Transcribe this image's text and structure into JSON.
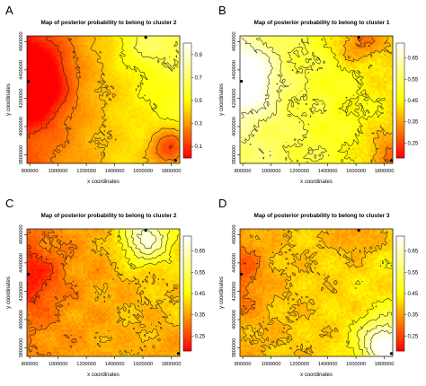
{
  "chart_data": [
    {
      "type": "heatmap",
      "panel_label": "A",
      "title": "Map of posterior probability to belong to cluster  2",
      "xlabel": "x coordinates",
      "ylabel": "y coordinates",
      "x_ticks": [
        "800000",
        "1000000",
        "1200000",
        "1400000",
        "1600000",
        "1800000"
      ],
      "y_ticks": [
        "3800000",
        "4000000",
        "4200000",
        "4400000",
        "4600000"
      ],
      "xlim": [
        780000,
        1860000
      ],
      "ylim": [
        3740000,
        4640000
      ],
      "colorbar_ticks": [
        "0.1",
        "0.3",
        "0.5",
        "0.7",
        "0.9"
      ],
      "colorbar_range": [
        0.0,
        1.0
      ],
      "colors": [
        "#ff0000",
        "#ffff00",
        "#ffffff"
      ],
      "contours": true,
      "points": [
        {
          "x": 790000,
          "y": 4320000
        },
        {
          "x": 1620000,
          "y": 4630000
        },
        {
          "x": 1830000,
          "y": 3760000
        }
      ],
      "field_features": [
        {
          "x": 790000,
          "y": 4320000,
          "sx": 170000,
          "sy": 190000,
          "amp": -0.55
        },
        {
          "x": 1800000,
          "y": 3840000,
          "sx": 110000,
          "sy": 110000,
          "amp": -0.42
        },
        {
          "x": 1640000,
          "y": 4590000,
          "sx": 160000,
          "sy": 120000,
          "amp": 0.18
        }
      ],
      "field_base": {
        "value": 0.38,
        "x_gradient": 0.4
      }
    },
    {
      "type": "heatmap",
      "panel_label": "B",
      "title": "Map of posterior probability to belong to cluster  1",
      "xlabel": "x coordinates",
      "ylabel": "y coordinates",
      "x_ticks": [
        "800000",
        "1000000",
        "1200000",
        "1400000",
        "1600000",
        "1800000"
      ],
      "y_ticks": [
        "3800000",
        "4000000",
        "4200000",
        "4400000",
        "4600000"
      ],
      "xlim": [
        780000,
        1860000
      ],
      "ylim": [
        3740000,
        4640000
      ],
      "colorbar_ticks": [
        "0.25",
        "0.35",
        "0.45",
        "0.55",
        "0.65"
      ],
      "colorbar_range": [
        0.18,
        0.72
      ],
      "colors": [
        "#ff0000",
        "#ffff00",
        "#ffffff"
      ],
      "contours": true,
      "points": [
        {
          "x": 790000,
          "y": 4320000
        },
        {
          "x": 1620000,
          "y": 4630000
        },
        {
          "x": 1850000,
          "y": 3760000
        }
      ],
      "field_features": [
        {
          "x": 790000,
          "y": 4330000,
          "sx": 150000,
          "sy": 160000,
          "amp": 0.28
        },
        {
          "x": 1620000,
          "y": 4600000,
          "sx": 130000,
          "sy": 100000,
          "amp": -0.14
        },
        {
          "x": 1830000,
          "y": 3790000,
          "sx": 110000,
          "sy": 110000,
          "amp": -0.12
        }
      ],
      "field_base": {
        "value": 0.5,
        "x_gradient": -0.16
      }
    },
    {
      "type": "heatmap",
      "panel_label": "C",
      "title": "Map of posterior probability to belong to cluster  2",
      "xlabel": "x coordinates",
      "ylabel": "y coordinates",
      "x_ticks": [
        "800000",
        "1000000",
        "1200000",
        "1400000",
        "1600000",
        "1800000"
      ],
      "y_ticks": [
        "3800000",
        "4000000",
        "4200000",
        "4400000",
        "4600000"
      ],
      "xlim": [
        780000,
        1860000
      ],
      "ylim": [
        3740000,
        4640000
      ],
      "colorbar_ticks": [
        "0.25",
        "0.35",
        "0.45",
        "0.55",
        "0.65"
      ],
      "colorbar_range": [
        0.18,
        0.72
      ],
      "colors": [
        "#ff0000",
        "#ffff00",
        "#ffffff"
      ],
      "contours": true,
      "points": [
        {
          "x": 790000,
          "y": 4320000
        },
        {
          "x": 1620000,
          "y": 4630000
        },
        {
          "x": 1850000,
          "y": 3760000
        }
      ],
      "field_features": [
        {
          "x": 1620000,
          "y": 4580000,
          "sx": 120000,
          "sy": 120000,
          "amp": 0.3
        },
        {
          "x": 800000,
          "y": 4300000,
          "sx": 150000,
          "sy": 170000,
          "amp": -0.12
        },
        {
          "x": 1800000,
          "y": 3800000,
          "sx": 110000,
          "sy": 110000,
          "amp": -0.05
        }
      ],
      "field_base": {
        "value": 0.36,
        "x_gradient": 0.08
      }
    },
    {
      "type": "heatmap",
      "panel_label": "D",
      "title": "Map of posterior probability to belong to cluster  3",
      "xlabel": "x coordinates",
      "ylabel": "y coordinates",
      "x_ticks": [
        "800000",
        "1000000",
        "1200000",
        "1400000",
        "1600000",
        "1800000"
      ],
      "y_ticks": [
        "3800000",
        "4000000",
        "4200000",
        "4400000",
        "4600000"
      ],
      "xlim": [
        780000,
        1860000
      ],
      "ylim": [
        3740000,
        4640000
      ],
      "colorbar_ticks": [
        "0.25",
        "0.35",
        "0.45",
        "0.55",
        "0.65"
      ],
      "colorbar_range": [
        0.18,
        0.72
      ],
      "colors": [
        "#ff0000",
        "#ffff00",
        "#ffffff"
      ],
      "contours": true,
      "points": [
        {
          "x": 790000,
          "y": 4320000
        },
        {
          "x": 1620000,
          "y": 4630000
        },
        {
          "x": 1850000,
          "y": 3760000
        }
      ],
      "field_features": [
        {
          "x": 1800000,
          "y": 3830000,
          "sx": 120000,
          "sy": 120000,
          "amp": 0.32
        },
        {
          "x": 790000,
          "y": 4320000,
          "sx": 110000,
          "sy": 180000,
          "amp": -0.1
        },
        {
          "x": 1620000,
          "y": 4600000,
          "sx": 130000,
          "sy": 110000,
          "amp": -0.08
        }
      ],
      "field_base": {
        "value": 0.4,
        "x_gradient": 0.06
      }
    }
  ]
}
